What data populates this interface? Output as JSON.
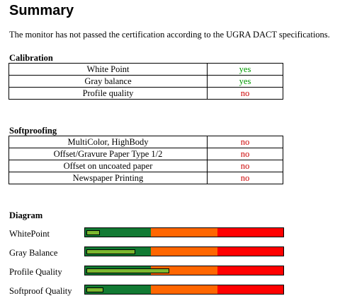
{
  "title": "Summary",
  "summary": "The monitor has not passed the certification according to the UGRA DACT specifications.",
  "calibration": {
    "heading": "Calibration",
    "rows": [
      {
        "label": "White Point",
        "result": "yes",
        "color": "#009900"
      },
      {
        "label": "Gray balance",
        "result": "yes",
        "color": "#009900"
      },
      {
        "label": "Profile quality",
        "result": "no",
        "color": "#cc0000"
      }
    ]
  },
  "softproofing": {
    "heading": "Softproofing",
    "rows": [
      {
        "label": "MultiColor, HighBody",
        "result": "no",
        "color": "#cc0000"
      },
      {
        "label": "Offset/Gravure Paper Type 1/2",
        "result": "no",
        "color": "#cc0000"
      },
      {
        "label": "Offset on uncoated paper",
        "result": "no",
        "color": "#cc0000"
      },
      {
        "label": "Newspaper Printing",
        "result": "no",
        "color": "#cc0000"
      }
    ]
  },
  "diagram": {
    "heading": "Diagram",
    "zone_colors": [
      "#127a33",
      "#ff6600",
      "#ff0000"
    ],
    "rows": [
      {
        "label": "WhitePoint",
        "value": 6
      },
      {
        "label": "Gray Balance",
        "value": 24
      },
      {
        "label": "Profile Quality",
        "value": 41
      },
      {
        "label": "Softproof Quality",
        "value": 8
      }
    ]
  }
}
